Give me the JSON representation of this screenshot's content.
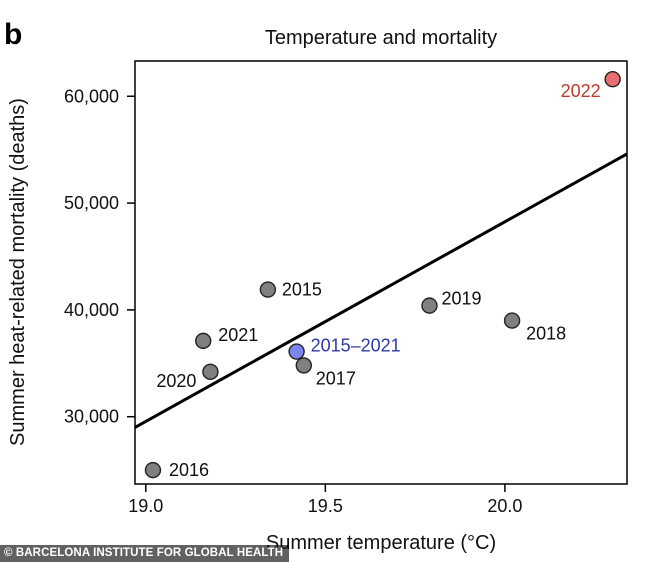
{
  "panel_letter": "b",
  "credit": "© BARCELONA INSTITUTE FOR GLOBAL HEALTH",
  "colors": {
    "point": "#808080",
    "highlight_2022": "#e86f6f",
    "label_2022": "#c0392b",
    "pooled": "#7b86f0",
    "label_pooled": "#2e3aa8",
    "line": "#000000"
  },
  "chart_data": {
    "type": "scatter",
    "title": "Temperature and mortality",
    "xlabel": "Summer temperature (°C)",
    "ylabel": "Summer heat-related mortality (deaths)",
    "xlim": [
      18.97,
      20.34
    ],
    "ylim": [
      23700,
      63300
    ],
    "x_ticks": [
      19.0,
      19.5,
      20.0
    ],
    "x_tick_labels": [
      "19.0",
      "19.5",
      "20.0"
    ],
    "y_ticks": [
      30000,
      40000,
      50000,
      60000
    ],
    "y_tick_labels": [
      "30,000",
      "40,000",
      "50,000",
      "60,000"
    ],
    "grid": false,
    "points": [
      {
        "label": "2015",
        "x": 19.34,
        "y": 41900,
        "group": "year"
      },
      {
        "label": "2016",
        "x": 19.02,
        "y": 25000,
        "group": "year"
      },
      {
        "label": "2017",
        "x": 19.44,
        "y": 34800,
        "group": "year"
      },
      {
        "label": "2018",
        "x": 20.02,
        "y": 39000,
        "group": "year"
      },
      {
        "label": "2019",
        "x": 19.79,
        "y": 40400,
        "group": "year"
      },
      {
        "label": "2020",
        "x": 19.18,
        "y": 34200,
        "group": "year"
      },
      {
        "label": "2021",
        "x": 19.16,
        "y": 37100,
        "group": "year"
      },
      {
        "label": "2015–2021",
        "x": 19.42,
        "y": 36100,
        "group": "pooled"
      },
      {
        "label": "2022",
        "x": 20.3,
        "y": 61600,
        "group": "highlight"
      }
    ],
    "fit_line": {
      "x": [
        18.97,
        20.34
      ],
      "y": [
        29000,
        54600
      ]
    }
  }
}
